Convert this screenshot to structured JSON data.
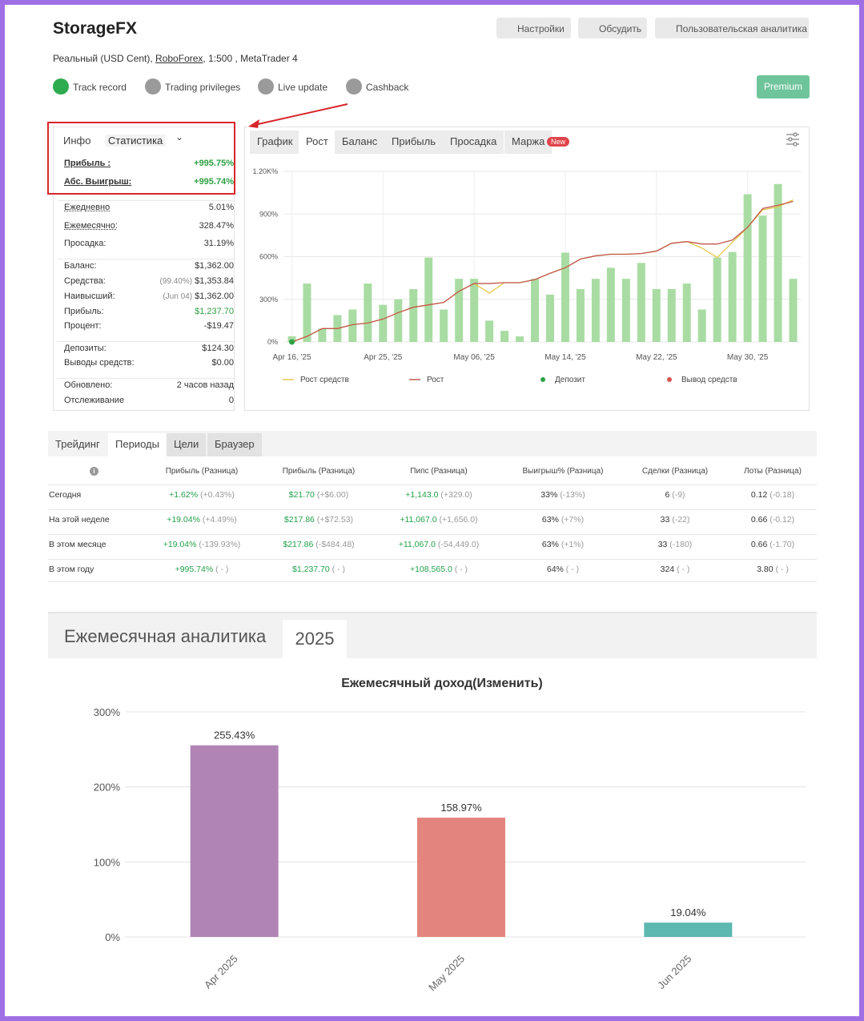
{
  "header": {
    "title": "StorageFX",
    "account": {
      "prefix": "Реальный (USD Cent), ",
      "broker": "RoboForex",
      "suffix": ", 1:500 , MetaTrader 4"
    },
    "buttons": [
      "Настройки",
      "Обсудить",
      "Пользовательская аналитика"
    ],
    "badges": [
      {
        "label": "Track record",
        "status": "ok"
      },
      {
        "label": "Trading privileges",
        "status": "warn"
      },
      {
        "label": "Live update",
        "status": "warn"
      },
      {
        "label": "Cashback",
        "status": "warn"
      }
    ],
    "premium": "Premium"
  },
  "stats": {
    "tabs": [
      "Инфо",
      "Статистика"
    ],
    "groups": [
      [
        {
          "label": "Прибыль :",
          "value": "+995.75%",
          "color": "#2ea043"
        },
        {
          "label": "Абс. Выигрыш:",
          "value": "+995.74%",
          "color": "#2ea043"
        }
      ],
      [
        {
          "label": "Ежедневно",
          "value": "5.01%"
        },
        {
          "label": "Ежемесячно:",
          "value": "328.47%"
        },
        {
          "label": "Просадка:",
          "value": "31.19%"
        }
      ],
      [
        {
          "label": "Баланс:",
          "value": "$1,362.00"
        },
        {
          "label": "Средства:",
          "note": "(99.40%)",
          "value": "$1,353.84"
        },
        {
          "label": "Наивысший:",
          "note": "(Jun 04)",
          "value": "$1,362.00"
        },
        {
          "label": "Прибыль:",
          "value": "$1,237.70",
          "color": "#2ea043"
        },
        {
          "label": "Процент:",
          "value": "-$19.47"
        }
      ],
      [
        {
          "label": "Депозиты:",
          "value": "$124.30"
        },
        {
          "label": "Выводы средств:",
          "value": "$0.00"
        }
      ],
      [
        {
          "label": "Обновлено:",
          "value": "2 часов назад"
        },
        {
          "label": "Отслеживание",
          "value": "0"
        }
      ]
    ]
  },
  "growth_tabs": {
    "tabs": [
      "График",
      "Рост",
      "Баланс",
      "Прибыль",
      "Просадка",
      "Маржа"
    ],
    "active": 1,
    "badge": "New"
  },
  "periods": {
    "tabs": [
      "Трейдинг",
      "Периоды",
      "Цели",
      "Браузер"
    ],
    "active": 1,
    "columns": [
      "Прибыль (Разница)",
      "Прибыль (Разница)",
      "Пипс (Разница)",
      "Выигрыш% (Разница)",
      "Сделки (Разница)",
      "Лоты (Разница)"
    ],
    "green_columns": [
      0,
      1,
      2
    ],
    "rows": [
      {
        "label": "Сегодня",
        "cells": [
          [
            "+1.62%",
            "(+0.43%)"
          ],
          [
            "$21.70",
            "(+$6.00)"
          ],
          [
            "+1,143.0",
            "(+329.0)"
          ],
          [
            "33%",
            "(-13%)"
          ],
          [
            "6",
            "(-9)"
          ],
          [
            "0.12",
            "(-0.18)"
          ]
        ]
      },
      {
        "label": "На этой неделе",
        "cells": [
          [
            "+19.04%",
            "(+4.49%)"
          ],
          [
            "$217.86",
            "(+$72.53)"
          ],
          [
            "+11,067.0",
            "(+1,656.0)"
          ],
          [
            "63%",
            "(+7%)"
          ],
          [
            "33",
            "(-22)"
          ],
          [
            "0.66",
            "(-0.12)"
          ]
        ]
      },
      {
        "label": "В этом месяце",
        "cells": [
          [
            "+19.04%",
            "(-139.93%)"
          ],
          [
            "$217.86",
            "(-$484.48)"
          ],
          [
            "+11,067.0",
            "(-54,449.0)"
          ],
          [
            "63%",
            "(+1%)"
          ],
          [
            "33",
            "(-180)"
          ],
          [
            "0.66",
            "(-1.70)"
          ]
        ]
      },
      {
        "label": "В этом году",
        "cells": [
          [
            "+995.74%",
            "( - )"
          ],
          [
            "$1,237.70",
            "( - )"
          ],
          [
            "+108,565.0",
            "( - )"
          ],
          [
            "64%",
            "( - )"
          ],
          [
            "324",
            "( - )"
          ],
          [
            "3.80",
            "( - )"
          ]
        ]
      }
    ]
  },
  "monthly": {
    "tabs": [
      "Ежемесячная аналитика",
      "2025"
    ]
  },
  "chart_data": [
    {
      "type": "combo",
      "categories": [
        "Apr 16, '25",
        null,
        null,
        null,
        null,
        null,
        "Apr 25, '25",
        null,
        null,
        null,
        null,
        null,
        "May 06, '25",
        null,
        null,
        null,
        null,
        null,
        "May 14, '25",
        null,
        null,
        null,
        null,
        null,
        "May 22, '25",
        null,
        null,
        null,
        null,
        null,
        "May 30, '25",
        null,
        null,
        null
      ],
      "ylim": [
        0,
        1200
      ],
      "yticks": [
        {
          "value": 0,
          "label": "0%"
        },
        {
          "value": 300,
          "label": "300%"
        },
        {
          "value": 600,
          "label": "600%"
        },
        {
          "value": 900,
          "label": "900%"
        },
        {
          "value": 1200,
          "label": "1.20K%"
        }
      ],
      "grid": true,
      "bar_color": "#a9dca3",
      "bar_values": [
        40,
        411,
        94,
        189,
        228,
        411,
        261,
        300,
        372,
        594,
        228,
        444,
        444,
        150,
        78,
        39,
        444,
        333,
        628,
        372,
        444,
        522,
        444,
        556,
        372,
        372,
        411,
        228,
        594,
        633,
        1039,
        889,
        1111,
        444
      ],
      "series": [
        {
          "name": "Рост средств",
          "type": "line",
          "color": "#e6c84f",
          "values": [
            0,
            39,
            94,
            94,
            122,
            133,
            161,
            206,
            244,
            261,
            278,
            356,
            411,
            344,
            417,
            417,
            439,
            483,
            522,
            583,
            606,
            617,
            617,
            622,
            639,
            694,
            706,
            660,
            594,
            700,
            806,
            930,
            950,
            1000
          ]
        },
        {
          "name": "Рост",
          "type": "line",
          "color": "#c0584d",
          "values": [
            0,
            39,
            94,
            94,
            122,
            133,
            161,
            206,
            244,
            261,
            278,
            356,
            411,
            411,
            417,
            417,
            439,
            483,
            522,
            583,
            606,
            617,
            617,
            622,
            639,
            694,
            706,
            689,
            689,
            717,
            806,
            939,
            961,
            989
          ]
        },
        {
          "name": "Депозит",
          "type": "scatter",
          "color": "#2ea043",
          "values": [
            0,
            null,
            null,
            null,
            null,
            null,
            null,
            null,
            null,
            null,
            null,
            null,
            null,
            null,
            null,
            null,
            null,
            null,
            null,
            null,
            null,
            null,
            null,
            null,
            null,
            null,
            null,
            null,
            null,
            null,
            null,
            null,
            null,
            null
          ]
        },
        {
          "name": "Вывод средств",
          "type": "scatter",
          "color": "#d9534f",
          "values": [
            null,
            null,
            null,
            null,
            null,
            null,
            null,
            null,
            null,
            null,
            null,
            null,
            null,
            null,
            null,
            null,
            null,
            null,
            null,
            null,
            null,
            null,
            null,
            null,
            null,
            null,
            null,
            null,
            null,
            null,
            null,
            null,
            null,
            null
          ]
        }
      ]
    },
    {
      "type": "bar",
      "title": "Ежемесячный доход(Изменить)",
      "categories": [
        "Apr 2025",
        "May 2025",
        "Jun 2025"
      ],
      "values": [
        255.43,
        158.97,
        19.04
      ],
      "value_labels": [
        "255.43%",
        "158.97%",
        "19.04%"
      ],
      "colors": [
        "#b085b5",
        "#e4847e",
        "#5cb8b0"
      ],
      "ylim": [
        0,
        300
      ],
      "yticks": [
        {
          "value": 0,
          "label": "0%"
        },
        {
          "value": 100,
          "label": "100%"
        },
        {
          "value": 200,
          "label": "200%"
        },
        {
          "value": 300,
          "label": "300%"
        }
      ],
      "grid": true
    }
  ]
}
